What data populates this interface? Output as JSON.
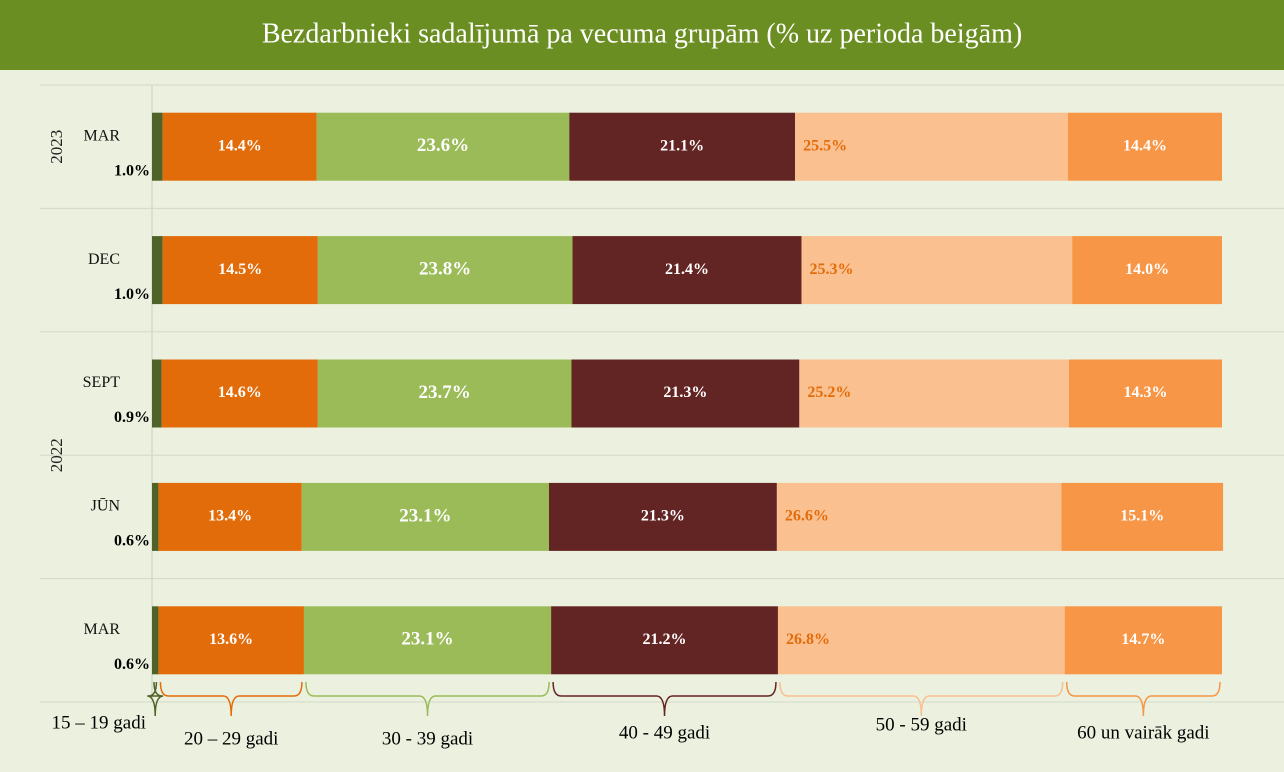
{
  "chart_data": {
    "type": "stacked-bar-horizontal",
    "title": "Bezdarbnieki sadalījumā pa vecuma grupām (% uz perioda beigām)",
    "categories": [
      "MAR",
      "DEC",
      "SEPT",
      "JŪN",
      "MAR"
    ],
    "category_groups": [
      {
        "label": "2023",
        "count": 1
      },
      {
        "label": "2022",
        "count": 4
      }
    ],
    "xlim": [
      0,
      100
    ],
    "series": [
      {
        "name": "15 – 19 gadi",
        "color": "#4f6228",
        "label_color": "#000000",
        "values": [
          1.0,
          1.0,
          0.9,
          0.6,
          0.6
        ],
        "value_labels": [
          "1.0%",
          "1.0%",
          "0.9%",
          "0.6%",
          "0.6%"
        ]
      },
      {
        "name": "20 – 29 gadi",
        "color": "#e36c0a",
        "label_color": "#ffffff",
        "values": [
          14.4,
          14.5,
          14.6,
          13.4,
          13.6
        ],
        "value_labels": [
          "14.4%",
          "14.5%",
          "14.6%",
          "13.4%",
          "13.6%"
        ]
      },
      {
        "name": "30 - 39 gadi",
        "color": "#9bbb59",
        "label_color": "#ffffff",
        "values": [
          23.6,
          23.8,
          23.7,
          23.1,
          23.1
        ],
        "value_labels": [
          "23.6%",
          "23.8%",
          "23.7%",
          "23.1%",
          "23.1%"
        ]
      },
      {
        "name": "40 - 49 gadi",
        "color": "#632523",
        "label_color": "#ffffff",
        "values": [
          21.1,
          21.4,
          21.3,
          21.3,
          21.2
        ],
        "value_labels": [
          "21.1%",
          "21.4%",
          "21.3%",
          "21.3%",
          "21.2%"
        ]
      },
      {
        "name": "50 - 59 gadi",
        "color": "#fac090",
        "label_color": "#e36c0a",
        "values": [
          25.5,
          25.3,
          25.2,
          26.6,
          26.8
        ],
        "value_labels": [
          "25.5%",
          "25.3%",
          "25.2%",
          "26.6%",
          "26.8%"
        ]
      },
      {
        "name": "60 un vairāk gadi",
        "color": "#f79646",
        "label_color": "#ffffff",
        "values": [
          14.4,
          14.0,
          14.3,
          15.1,
          14.7
        ],
        "value_labels": [
          "14.4%",
          "14.0%",
          "14.3%",
          "15.1%",
          "14.7%"
        ]
      }
    ]
  }
}
